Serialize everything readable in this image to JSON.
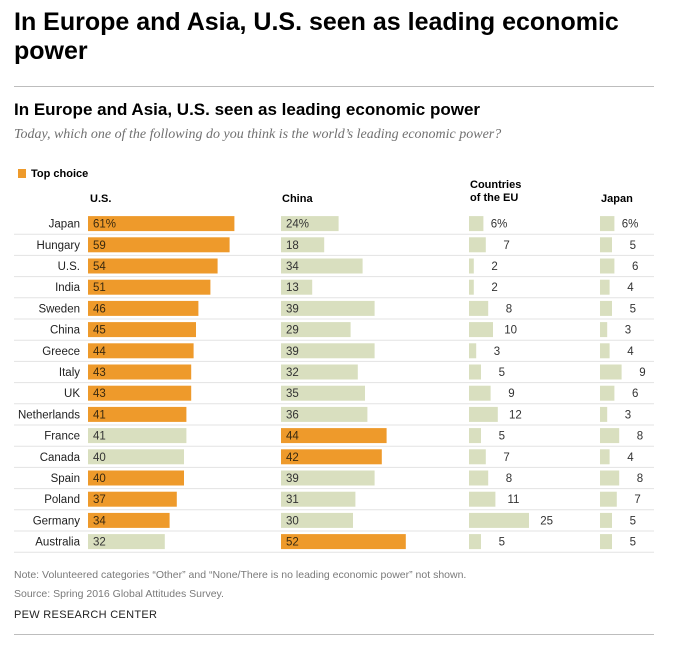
{
  "headline": "In Europe and Asia, U.S. seen as leading economic power",
  "title": "In Europe and Asia, U.S. seen as leading economic power",
  "subtitle": "Today, which one of the following do you think is the world’s leading economic power?",
  "legend_label": "Top choice",
  "colors": {
    "top_choice": "#ee9a2b",
    "other": "#d9dfbf",
    "row_rule": "#e3e3e3"
  },
  "chart_data": {
    "type": "bar",
    "categories": [
      "Japan",
      "Hungary",
      "U.S.",
      "India",
      "Sweden",
      "China",
      "Greece",
      "Italy",
      "UK",
      "Netherlands",
      "France",
      "Canada",
      "Spain",
      "Poland",
      "Germany",
      "Australia"
    ],
    "series": [
      {
        "name": "U.S.",
        "values": [
          61,
          59,
          54,
          51,
          46,
          45,
          44,
          43,
          43,
          41,
          41,
          40,
          40,
          37,
          34,
          32
        ],
        "labels": [
          "61%",
          "59",
          "54",
          "51",
          "46",
          "45",
          "44",
          "43",
          "43",
          "41",
          "41",
          "40",
          "40",
          "37",
          "34",
          "32"
        ]
      },
      {
        "name": "China",
        "values": [
          24,
          18,
          34,
          13,
          39,
          29,
          39,
          32,
          35,
          36,
          44,
          42,
          39,
          31,
          30,
          52
        ],
        "labels": [
          "24%",
          "18",
          "34",
          "13",
          "39",
          "29",
          "39",
          "32",
          "35",
          "36",
          "44",
          "42",
          "39",
          "31",
          "30",
          "52"
        ]
      },
      {
        "name": "Countries of the EU",
        "values": [
          6,
          7,
          2,
          2,
          8,
          10,
          3,
          5,
          9,
          12,
          5,
          7,
          8,
          11,
          25,
          5
        ],
        "labels": [
          "6%",
          "7",
          "2",
          "2",
          "8",
          "10",
          "3",
          "5",
          "9",
          "12",
          "5",
          "7",
          "8",
          "11",
          "25",
          "5"
        ]
      },
      {
        "name": "Japan",
        "values": [
          6,
          5,
          6,
          4,
          5,
          3,
          4,
          9,
          6,
          3,
          8,
          4,
          8,
          7,
          5,
          5
        ],
        "labels": [
          "6%",
          "5",
          "6",
          "4",
          "5",
          "3",
          "4",
          "9",
          "6",
          "3",
          "8",
          "4",
          "8",
          "7",
          "5",
          "5"
        ]
      }
    ],
    "top_choice": [
      "U.S.",
      "U.S.",
      "U.S.",
      "U.S.",
      "U.S.",
      "U.S.",
      "U.S.",
      "U.S.",
      "U.S.",
      "U.S.",
      "China",
      "China",
      "U.S.",
      "U.S.",
      "U.S.",
      "China"
    ]
  },
  "column_headers": {
    "us": "U.S.",
    "china": "China",
    "eu_line1": "Countries",
    "eu_line2": "of the EU",
    "japan": "Japan"
  },
  "note": "Note: Volunteered categories “Other” and “None/There is no leading economic power” not shown.",
  "source": "Source: Spring 2016 Global Attitudes Survey.",
  "credit": "PEW RESEARCH CENTER"
}
